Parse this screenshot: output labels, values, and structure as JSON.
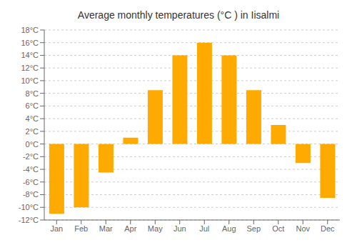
{
  "chart_data": {
    "type": "bar",
    "title": "Average monthly temperatures (°C ) in Iisalmi",
    "categories": [
      "Jan",
      "Feb",
      "Mar",
      "Apr",
      "May",
      "Jun",
      "Jul",
      "Aug",
      "Sep",
      "Oct",
      "Nov",
      "Dec"
    ],
    "values": [
      -11,
      -10,
      -4.5,
      1,
      8.5,
      14,
      16,
      14,
      8.5,
      3,
      -3,
      -8.5
    ],
    "color": "#FFAA00",
    "ylim": [
      -12,
      18
    ],
    "yticks": [
      {
        "value": -12,
        "label": "-12°C"
      },
      {
        "value": -10,
        "label": "-10°C"
      },
      {
        "value": -8,
        "label": "-8°C"
      },
      {
        "value": -6,
        "label": "-6°C"
      },
      {
        "value": -4,
        "label": "-4°C"
      },
      {
        "value": -2,
        "label": "-2°C"
      },
      {
        "value": 0,
        "label": "0°C"
      },
      {
        "value": 2,
        "label": "2°C"
      },
      {
        "value": 4,
        "label": "4°C"
      },
      {
        "value": 6,
        "label": "6°C"
      },
      {
        "value": 8,
        "label": "8°C"
      },
      {
        "value": 10,
        "label": "10°C"
      },
      {
        "value": 12,
        "label": "12°C"
      },
      {
        "value": 14,
        "label": "14°C"
      },
      {
        "value": 16,
        "label": "16°C"
      },
      {
        "value": 18,
        "label": "18°C"
      }
    ],
    "grid": true
  }
}
